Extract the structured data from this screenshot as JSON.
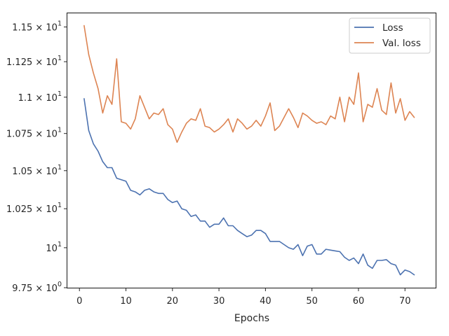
{
  "chart_data": {
    "type": "line",
    "xlabel": "Epochs",
    "ylabel": "",
    "title": "",
    "y_scale": "log",
    "xlim": [
      -2.6,
      76.6
    ],
    "ylim": [
      9.75,
      11.6
    ],
    "xticks": [
      0,
      10,
      20,
      30,
      40,
      50,
      60,
      70
    ],
    "yticks": [
      {
        "value": 9.75,
        "mantissa": "9.75",
        "base": "10",
        "exp": "0"
      },
      {
        "value": 10.0,
        "mantissa": "",
        "base": "10",
        "exp": "1"
      },
      {
        "value": 10.25,
        "mantissa": "1.025",
        "base": "10",
        "exp": "1"
      },
      {
        "value": 10.5,
        "mantissa": "1.05",
        "base": "10",
        "exp": "1"
      },
      {
        "value": 10.75,
        "mantissa": "1.075",
        "base": "10",
        "exp": "1"
      },
      {
        "value": 11.0,
        "mantissa": "1.1",
        "base": "10",
        "exp": "1"
      },
      {
        "value": 11.25,
        "mantissa": "1.125",
        "base": "10",
        "exp": "1"
      },
      {
        "value": 11.5,
        "mantissa": "1.15",
        "base": "10",
        "exp": "1"
      }
    ],
    "grid": false,
    "legend_position": "top-right",
    "series": [
      {
        "name": "Loss",
        "color": "#4c72b0",
        "x": [
          1,
          2,
          3,
          4,
          5,
          6,
          7,
          8,
          9,
          10,
          11,
          12,
          13,
          14,
          15,
          16,
          17,
          18,
          19,
          20,
          21,
          22,
          23,
          24,
          25,
          26,
          27,
          28,
          29,
          30,
          31,
          32,
          33,
          34,
          35,
          36,
          37,
          38,
          39,
          40,
          41,
          42,
          43,
          44,
          45,
          46,
          47,
          48,
          49,
          50,
          51,
          52,
          53,
          54,
          55,
          56,
          57,
          58,
          59,
          60,
          61,
          62,
          63,
          64,
          65,
          66,
          67,
          68,
          69,
          70,
          71,
          72
        ],
        "values": [
          10.99,
          10.77,
          10.68,
          10.63,
          10.56,
          10.52,
          10.52,
          10.45,
          10.44,
          10.43,
          10.37,
          10.36,
          10.34,
          10.37,
          10.38,
          10.36,
          10.35,
          10.35,
          10.31,
          10.29,
          10.3,
          10.25,
          10.24,
          10.2,
          10.21,
          10.17,
          10.17,
          10.13,
          10.15,
          10.15,
          10.19,
          10.14,
          10.14,
          10.11,
          10.09,
          10.07,
          10.08,
          10.11,
          10.11,
          10.09,
          10.04,
          10.04,
          10.04,
          10.02,
          10.0,
          9.99,
          10.02,
          9.95,
          10.01,
          10.02,
          9.96,
          9.96,
          9.99,
          9.985,
          9.98,
          9.975,
          9.94,
          9.92,
          9.935,
          9.9,
          9.96,
          9.89,
          9.87,
          9.92,
          9.92,
          9.925,
          9.9,
          9.89,
          9.83,
          9.86,
          9.85,
          9.83
        ]
      },
      {
        "name": "Val. loss",
        "color": "#dd8452",
        "x": [
          1,
          2,
          3,
          4,
          5,
          6,
          7,
          8,
          9,
          10,
          11,
          12,
          13,
          14,
          15,
          16,
          17,
          18,
          19,
          20,
          21,
          22,
          23,
          24,
          25,
          26,
          27,
          28,
          29,
          30,
          31,
          32,
          33,
          34,
          35,
          36,
          37,
          38,
          39,
          40,
          41,
          42,
          43,
          44,
          45,
          46,
          47,
          48,
          49,
          50,
          51,
          52,
          53,
          54,
          55,
          56,
          57,
          58,
          59,
          60,
          61,
          62,
          63,
          64,
          65,
          66,
          67,
          68,
          69,
          70,
          71,
          72
        ],
        "values": [
          11.51,
          11.3,
          11.17,
          11.06,
          10.89,
          11.01,
          10.95,
          11.27,
          10.83,
          10.82,
          10.78,
          10.85,
          11.01,
          10.93,
          10.85,
          10.89,
          10.88,
          10.92,
          10.81,
          10.78,
          10.69,
          10.76,
          10.82,
          10.85,
          10.84,
          10.92,
          10.8,
          10.79,
          10.76,
          10.78,
          10.81,
          10.85,
          10.76,
          10.85,
          10.82,
          10.78,
          10.8,
          10.84,
          10.8,
          10.87,
          10.96,
          10.77,
          10.8,
          10.86,
          10.92,
          10.86,
          10.79,
          10.89,
          10.87,
          10.84,
          10.82,
          10.83,
          10.81,
          10.87,
          10.85,
          11.0,
          10.83,
          11.0,
          10.95,
          11.17,
          10.83,
          10.95,
          10.93,
          11.06,
          10.91,
          10.88,
          11.1,
          10.89,
          10.99,
          10.84,
          10.9,
          10.86
        ]
      }
    ]
  }
}
